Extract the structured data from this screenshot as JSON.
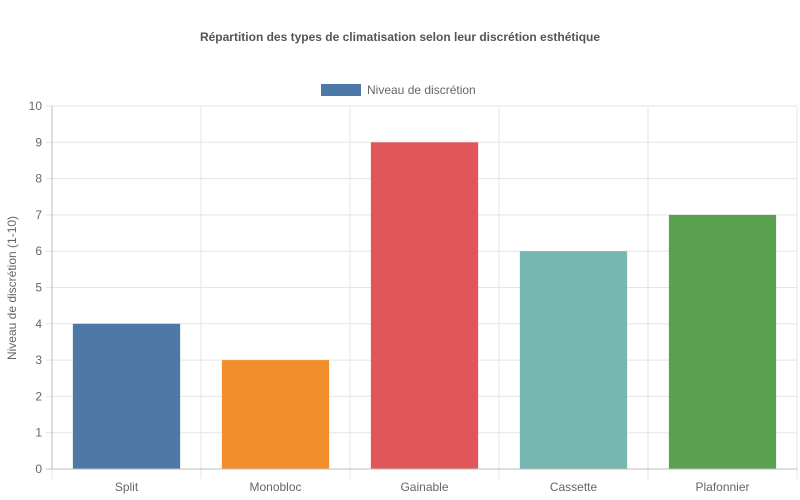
{
  "chart_data": {
    "type": "bar",
    "title": "Répartition des types de climatisation selon leur discrétion esthétique",
    "categories": [
      "Split",
      "Monobloc",
      "Gainable",
      "Cassette",
      "Plafonnier"
    ],
    "series": [
      {
        "name": "Niveau de discrétion",
        "values": [
          4,
          3,
          9,
          6,
          7
        ]
      }
    ],
    "bar_colors": [
      "#4e79a7",
      "#f28e2b",
      "#e15759",
      "#76b7b2",
      "#59a14f"
    ],
    "legend_color": "#4e79a7",
    "xlabel": "",
    "ylabel": "Niveau de discrétion (1-10)",
    "ylim": [
      0,
      10
    ],
    "yticks": [
      "0",
      "1",
      "2",
      "3",
      "4",
      "5",
      "6",
      "7",
      "8",
      "9",
      "10"
    ],
    "grid": true,
    "legend_position": "top"
  }
}
